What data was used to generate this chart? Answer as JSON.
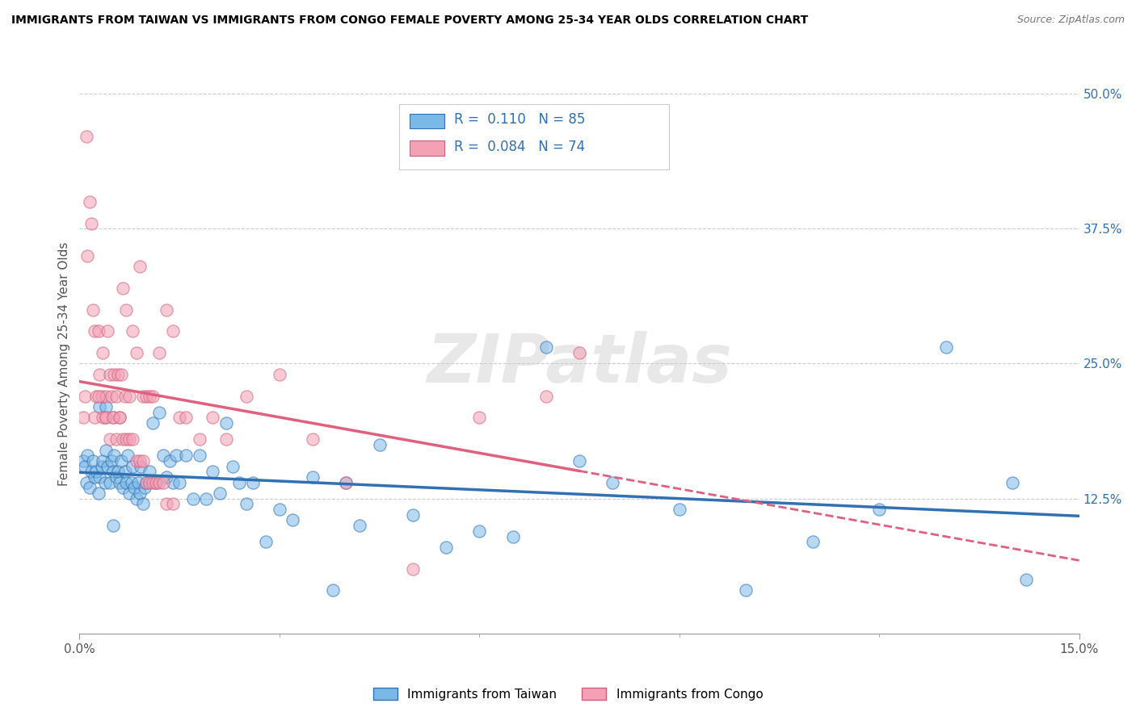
{
  "title": "IMMIGRANTS FROM TAIWAN VS IMMIGRANTS FROM CONGO FEMALE POVERTY AMONG 25-34 YEAR OLDS CORRELATION CHART",
  "source": "Source: ZipAtlas.com",
  "ylabel": "Female Poverty Among 25-34 Year Olds",
  "xlim": [
    0,
    15
  ],
  "ylim": [
    0,
    50
  ],
  "ytick_values": [
    12.5,
    25.0,
    37.5,
    50.0
  ],
  "ytick_labels": [
    "12.5%",
    "25.0%",
    "37.5%",
    "50.0%"
  ],
  "taiwan_color": "#7ab8e8",
  "congo_color": "#f4a0b5",
  "taiwan_line_color": "#3070b3",
  "congo_line_color": "#e06080",
  "taiwan_R": 0.11,
  "taiwan_N": 85,
  "congo_R": 0.084,
  "congo_N": 74,
  "watermark": "ZIPatlas",
  "legend_taiwan": "Immigrants from Taiwan",
  "legend_congo": "Immigrants from Congo",
  "taiwan_x": [
    0.05,
    0.08,
    0.1,
    0.12,
    0.15,
    0.18,
    0.2,
    0.22,
    0.25,
    0.28,
    0.3,
    0.33,
    0.35,
    0.38,
    0.4,
    0.42,
    0.45,
    0.48,
    0.5,
    0.52,
    0.55,
    0.58,
    0.6,
    0.62,
    0.65,
    0.68,
    0.7,
    0.72,
    0.75,
    0.78,
    0.8,
    0.82,
    0.85,
    0.88,
    0.9,
    0.92,
    0.95,
    0.98,
    1.0,
    1.05,
    1.1,
    1.15,
    1.2,
    1.25,
    1.3,
    1.35,
    1.4,
    1.45,
    1.5,
    1.6,
    1.7,
    1.8,
    1.9,
    2.0,
    2.1,
    2.2,
    2.3,
    2.4,
    2.5,
    2.6,
    2.8,
    3.0,
    3.2,
    3.5,
    3.8,
    4.0,
    4.2,
    4.5,
    5.0,
    5.5,
    6.0,
    6.5,
    7.0,
    7.5,
    8.0,
    9.0,
    10.0,
    11.0,
    12.0,
    13.0,
    14.0,
    14.2,
    0.3,
    0.4,
    0.5
  ],
  "taiwan_y": [
    16.0,
    15.5,
    14.0,
    16.5,
    13.5,
    15.0,
    16.0,
    14.5,
    15.0,
    13.0,
    14.5,
    15.5,
    16.0,
    14.0,
    17.0,
    15.5,
    14.0,
    16.0,
    15.0,
    16.5,
    14.5,
    15.0,
    14.0,
    16.0,
    13.5,
    15.0,
    14.0,
    16.5,
    13.0,
    14.0,
    15.5,
    13.5,
    12.5,
    14.0,
    13.0,
    15.5,
    12.0,
    13.5,
    14.0,
    15.0,
    19.5,
    14.0,
    20.5,
    16.5,
    14.5,
    16.0,
    14.0,
    16.5,
    14.0,
    16.5,
    12.5,
    16.5,
    12.5,
    15.0,
    13.0,
    19.5,
    15.5,
    14.0,
    12.0,
    14.0,
    8.5,
    11.5,
    10.5,
    14.5,
    4.0,
    14.0,
    10.0,
    17.5,
    11.0,
    8.0,
    9.5,
    9.0,
    26.5,
    16.0,
    14.0,
    11.5,
    4.0,
    8.5,
    11.5,
    26.5,
    14.0,
    5.0,
    21.0,
    21.0,
    10.0
  ],
  "congo_x": [
    0.05,
    0.08,
    0.1,
    0.12,
    0.15,
    0.18,
    0.2,
    0.22,
    0.25,
    0.28,
    0.3,
    0.33,
    0.35,
    0.38,
    0.4,
    0.42,
    0.45,
    0.48,
    0.5,
    0.52,
    0.55,
    0.58,
    0.6,
    0.62,
    0.65,
    0.68,
    0.7,
    0.75,
    0.8,
    0.85,
    0.9,
    0.95,
    1.0,
    1.05,
    1.1,
    1.2,
    1.3,
    1.4,
    1.5,
    1.6,
    1.8,
    2.0,
    2.2,
    2.5,
    3.0,
    3.5,
    4.0,
    5.0,
    6.0,
    7.0,
    0.22,
    0.28,
    0.35,
    0.4,
    0.45,
    0.5,
    0.55,
    0.6,
    0.65,
    0.7,
    0.75,
    0.8,
    0.85,
    0.9,
    0.95,
    1.0,
    1.05,
    1.1,
    1.15,
    1.2,
    1.25,
    1.3,
    1.4,
    7.5
  ],
  "congo_y": [
    20.0,
    22.0,
    46.0,
    35.0,
    40.0,
    38.0,
    30.0,
    28.0,
    22.0,
    28.0,
    24.0,
    22.0,
    26.0,
    20.0,
    22.0,
    28.0,
    24.0,
    22.0,
    20.0,
    24.0,
    22.0,
    24.0,
    20.0,
    24.0,
    32.0,
    22.0,
    30.0,
    22.0,
    28.0,
    26.0,
    34.0,
    22.0,
    22.0,
    22.0,
    22.0,
    26.0,
    30.0,
    28.0,
    20.0,
    20.0,
    18.0,
    20.0,
    18.0,
    22.0,
    24.0,
    18.0,
    14.0,
    6.0,
    20.0,
    22.0,
    20.0,
    22.0,
    20.0,
    20.0,
    18.0,
    20.0,
    18.0,
    20.0,
    18.0,
    18.0,
    18.0,
    18.0,
    16.0,
    16.0,
    16.0,
    14.0,
    14.0,
    14.0,
    14.0,
    14.0,
    14.0,
    12.0,
    12.0,
    26.0
  ]
}
